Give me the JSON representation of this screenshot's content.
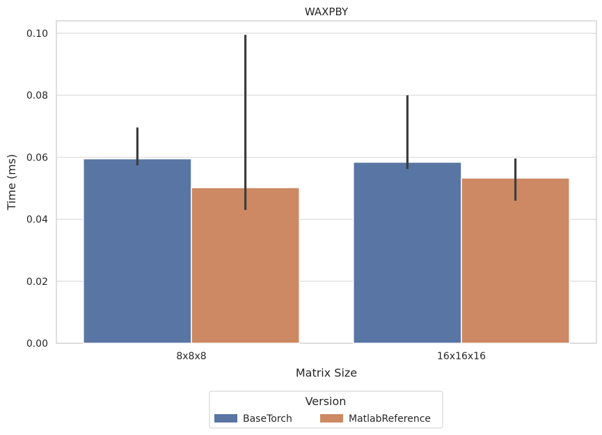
{
  "chart_data": {
    "type": "bar",
    "title": "WAXPBY",
    "xlabel": "Matrix Size",
    "ylabel": "Time (ms)",
    "categories": [
      "8x8x8",
      "16x16x16"
    ],
    "ylim": [
      0,
      0.104
    ],
    "yticks": [
      "0.00",
      "0.02",
      "0.04",
      "0.06",
      "0.08",
      "0.10"
    ],
    "grid": true,
    "series": [
      {
        "name": "BaseTorch",
        "color": "#5875a4",
        "values": [
          0.0595,
          0.0584
        ],
        "err_low": [
          0.0574,
          0.0562
        ],
        "err_high": [
          0.0696,
          0.08
        ]
      },
      {
        "name": "MatlabReference",
        "color": "#cc8963",
        "values": [
          0.0502,
          0.0533
        ],
        "err_low": [
          0.043,
          0.046
        ],
        "err_high": [
          0.0995,
          0.0596
        ]
      }
    ],
    "legend": {
      "title": "Version",
      "placement": "below"
    }
  }
}
